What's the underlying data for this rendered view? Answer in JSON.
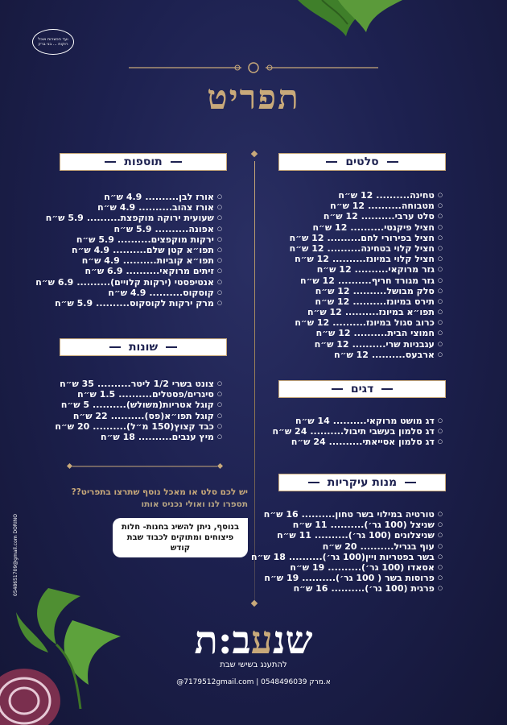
{
  "stamp_text": "ועד הכשרות אוכל רוקוח ... בני ברק",
  "title": "תפריט",
  "sections": {
    "salads": {
      "title": "סלטים",
      "items": [
        {
          "name": "טחינה",
          "price": "12 ש״ח"
        },
        {
          "name": "מטבוחה",
          "price": "12 ש״ח"
        },
        {
          "name": "סלט ערבי",
          "price": "12 ש״ח"
        },
        {
          "name": "חציל פיקנטי",
          "price": "12 ש״ח"
        },
        {
          "name": "חציל בפירורי לחם",
          "price": "12 ש״ח"
        },
        {
          "name": "חציל קלוי בטחינה",
          "price": "12 ש״ח"
        },
        {
          "name": "חציל קלוי במיונז",
          "price": "12 ש״ח"
        },
        {
          "name": "גזר מרוקאי",
          "price": "12 ש״ח"
        },
        {
          "name": "גזר מגורד חריף",
          "price": "12 ש״ח"
        },
        {
          "name": "סלק מבושל",
          "price": "12 ש״ח"
        },
        {
          "name": "תירס במיונז",
          "price": "12 ש״ח"
        },
        {
          "name": "תפו״א במיונז",
          "price": "12 ש״ח"
        },
        {
          "name": "כרוב סגול במיונז",
          "price": "12 ש״ח"
        },
        {
          "name": "חמוצי הבית",
          "price": "12 ש״ח"
        },
        {
          "name": "עגבניות שרי",
          "price": "12 ש״ח"
        },
        {
          "name": "ארבעס",
          "price": "12 ש״ח"
        }
      ]
    },
    "extras": {
      "title": "תוספות",
      "items": [
        {
          "name": "אורז לבן",
          "price": "4.9 ש״ח"
        },
        {
          "name": "אורז צהוב",
          "price": "4.9 ש״ח"
        },
        {
          "name": "שעועית ירוקה מוקפצת",
          "price": "5.9 ש״ח"
        },
        {
          "name": "אפונה",
          "price": "5.9 ש״ח"
        },
        {
          "name": "ירקות מוקפצים",
          "price": "5.9 ש״ח"
        },
        {
          "name": "תפו״א קטן שלם",
          "price": "4.9 ש״ח"
        },
        {
          "name": "תפו״א קוביות",
          "price": "4.9 ש״ח"
        },
        {
          "name": "זיתים מרוקאי",
          "price": "6.9 ש״ח"
        },
        {
          "name": "אנטיפסטי (ירקות קלויים)",
          "price": "6.9 ש״ח"
        },
        {
          "name": "קוסקוס",
          "price": "4.9 ש״ח"
        },
        {
          "name": "מרק ירקות לקוסקוס",
          "price": "5.9 ש״ח"
        }
      ]
    },
    "misc": {
      "title": "שונות",
      "items": [
        {
          "name": "צונט בשרי 1/2 ליטר",
          "price": "35 ש״ח"
        },
        {
          "name": "סיגרים/פסטלים",
          "price": "1.5 ש״ח"
        },
        {
          "name": "קוגל אטריות(משולש)",
          "price": "5 ש״ח"
        },
        {
          "name": "קוגל תפו״א(פס)",
          "price": "22 ש״ח"
        },
        {
          "name": "כבד קצוץ(150 מ״ל)",
          "price": "20 ש״ח"
        },
        {
          "name": "מיץ ענבים",
          "price": "18 ש״ח"
        }
      ]
    },
    "fish": {
      "title": "דגים",
      "items": [
        {
          "name": "דג מושט מרוקאי",
          "price": "14 ש״ח"
        },
        {
          "name": "דג סלמון בעשבי תיבול",
          "price": "24 ש״ח"
        },
        {
          "name": "דג סלמון אסייאתי",
          "price": "24 ש״ח"
        }
      ]
    },
    "mains": {
      "title": "מנות עיקריות",
      "items": [
        {
          "name": "טורטיה במילוי בשר טחון",
          "price": "16 ש״ח"
        },
        {
          "name": "שניצל (100 גר׳)",
          "price": "11 ש״ח"
        },
        {
          "name": "שניצלונים (100 גר׳)",
          "price": "11 ש״ח"
        },
        {
          "name": "עוף בגריל",
          "price": "20 ש״ח"
        },
        {
          "name": "בשר בפטריות ויין(100 גר׳)",
          "price": "18 ש״ח"
        },
        {
          "name": "אסאדו (100 גר׳)",
          "price": "19 ש״ח"
        },
        {
          "name": "פרוסות בשר ( 100 גר׳)",
          "price": "19 ש״ח"
        },
        {
          "name": "פרגית (100 גר׳)",
          "price": "16 ש״ח"
        }
      ]
    }
  },
  "question_line1": "יש לכם סלט או מאכל נוסף שתרצו בתפריט??",
  "question_line2": "תספרו לנו ואולי נכניס אותו",
  "bubble_text": "בנוסף, ניתן להשיג בחנות- חלות פיצוחים ומתוקים לכבוד שבת קודש",
  "side_credit": "0548651709@gmail.com  DORINO",
  "logo": {
    "part1": "שנ",
    "part2": "ע",
    "part3": "ב:ת"
  },
  "slogan": "להתענג בשישי שבת",
  "contact": "א.מרק 0548496039 | 7179512gmail.com@",
  "colors": {
    "background": "#1d2150",
    "gold": "#c8a97a",
    "text": "#ffffff"
  }
}
